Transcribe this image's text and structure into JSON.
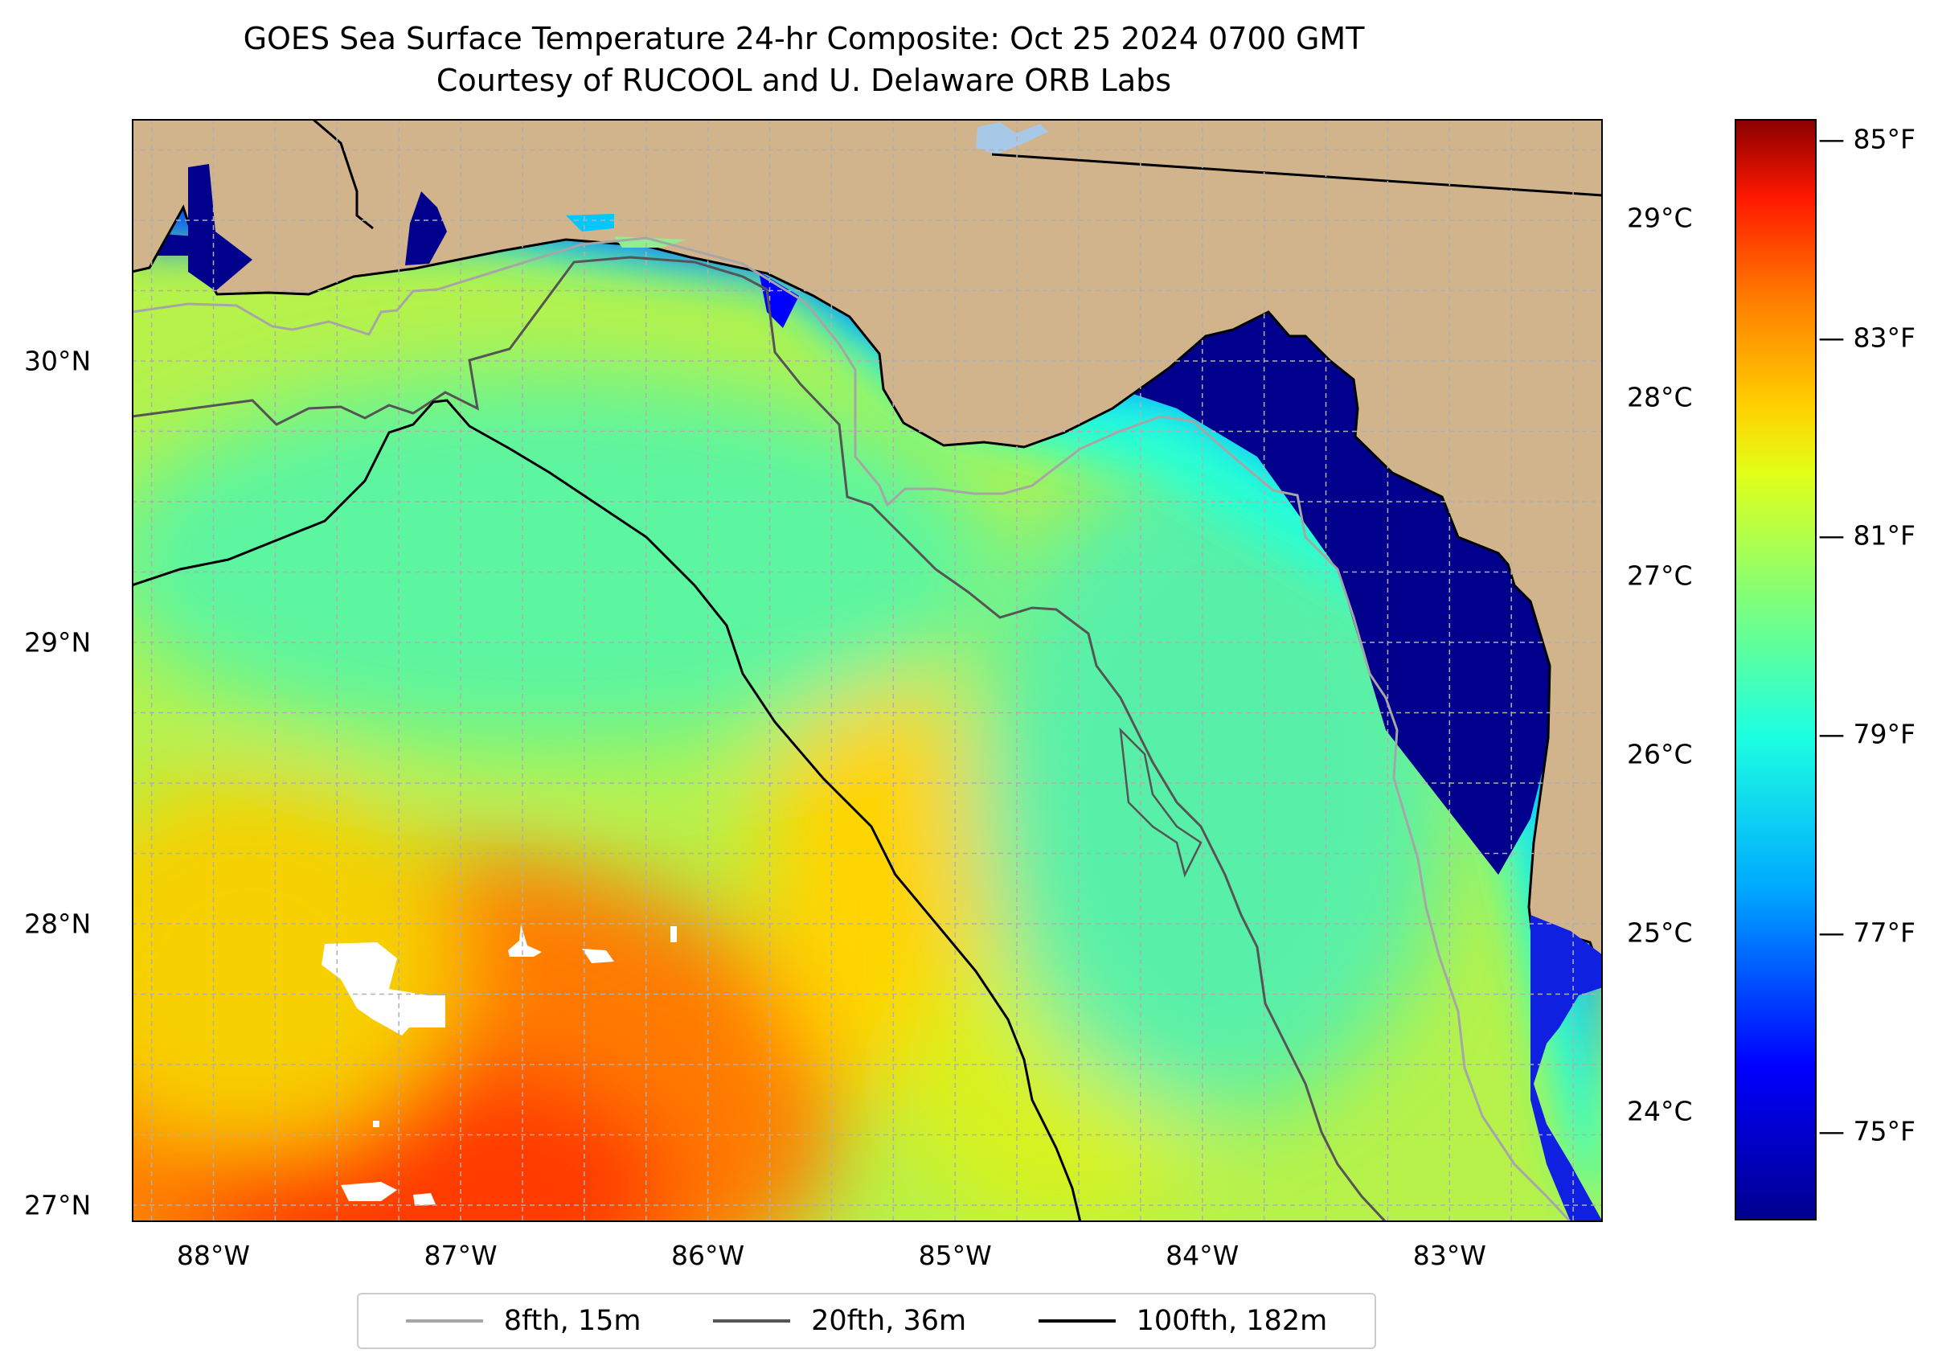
{
  "title": {
    "line1": "GOES Sea Surface Temperature 24-hr Composite: Oct 25 2024 0700 GMT",
    "line2": "Courtesy of RUCOOL and U. Delaware ORB Labs"
  },
  "map": {
    "extent": {
      "lon_min": -88.33,
      "lon_max": -82.38,
      "lat_min": 26.94,
      "lat_max": 30.86
    },
    "colors": {
      "land": "#d2b48c",
      "coast": "#000000",
      "no_data": "#ffffff",
      "grid": "#b0b0b0",
      "lake": "#a8c8e8"
    },
    "lat_ticks": [
      {
        "label": "30°N",
        "lat": 30
      },
      {
        "label": "29°N",
        "lat": 29
      },
      {
        "label": "28°N",
        "lat": 28
      },
      {
        "label": "27°N",
        "lat": 27
      }
    ],
    "lon_ticks": [
      {
        "label": "88°W",
        "lon": -88
      },
      {
        "label": "87°W",
        "lon": -87
      },
      {
        "label": "86°W",
        "lon": -86
      },
      {
        "label": "85°W",
        "lon": -85
      },
      {
        "label": "84°W",
        "lon": -84
      },
      {
        "label": "83°W",
        "lon": -83
      }
    ]
  },
  "colorbar": {
    "celsius_ticks": [
      {
        "label": "29°C",
        "value": 29
      },
      {
        "label": "28°C",
        "value": 28
      },
      {
        "label": "27°C",
        "value": 27
      },
      {
        "label": "26°C",
        "value": 26
      },
      {
        "label": "25°C",
        "value": 25
      },
      {
        "label": "24°C",
        "value": 24
      }
    ],
    "fahrenheit_ticks": [
      {
        "label": "85°F",
        "value": 85
      },
      {
        "label": "83°F",
        "value": 83
      },
      {
        "label": "81°F",
        "value": 81
      },
      {
        "label": "79°F",
        "value": 79
      },
      {
        "label": "77°F",
        "value": 77
      },
      {
        "label": "75°F",
        "value": 75
      }
    ],
    "range_f": [
      74.1,
      85.2
    ]
  },
  "legend": {
    "items": [
      {
        "label": "8fth, 15m",
        "color": "#a6a6a6"
      },
      {
        "label": "20fth, 36m",
        "color": "#555555"
      },
      {
        "label": "100fth, 182m",
        "color": "#000000"
      }
    ]
  }
}
